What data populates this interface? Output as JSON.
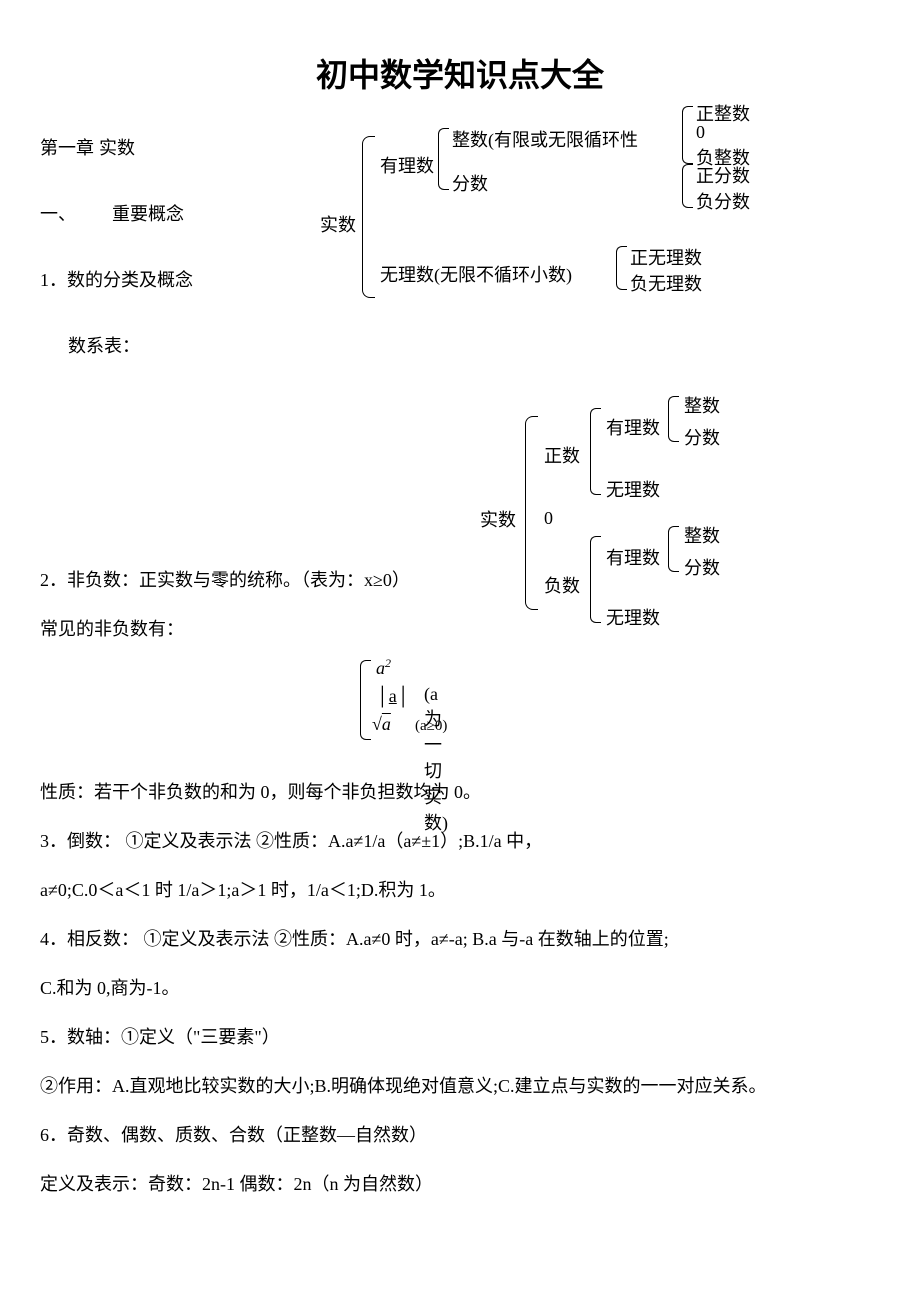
{
  "title": "初中数学知识点大全",
  "chapter": "第一章  实数",
  "section1_label": "一、",
  "section1_title": "重要概念",
  "item1": "1．数的分类及概念",
  "item1_sub": "数系表：",
  "diag1": {
    "root": "实数",
    "a": "有理数",
    "a1": "整数",
    "a1_note": "(有限或无限循环性",
    "a2": "分数",
    "a1_c1": "正整数",
    "a1_c2": "0",
    "a1_c3": "负整数",
    "a2_c1": "正分数",
    "a2_c2": "负分数",
    "b": "无理数(无限不循环小数)",
    "b_c1": "正无理数",
    "b_c2": "负无理数"
  },
  "diag2": {
    "root": "实数",
    "pos": "正数",
    "zero": "0",
    "neg": "负数",
    "rat": "有理数",
    "irr": "无理数",
    "int": "整数",
    "frac": "分数"
  },
  "item2": "2．非负数：正实数与零的统称。（表为：x≥0）",
  "item2_sub": "常见的非负数有：",
  "formula": {
    "f1_base": "a",
    "f1_exp": "2",
    "f2": "│a│",
    "f2_u": "a",
    "note1": "(a 为一切实数)",
    "f3_sqrt": "√",
    "f3_rad": "a",
    "note2": "(a≥0)"
  },
  "prop": "性质：若干个非负数的和为 0，则每个非负担数均为 0。",
  "item3": "3．倒数：  ①定义及表示法                           ②性质：A.a≠1/a（a≠±1）;B.1/a 中，",
  "item3b": "a≠0;C.0＜a＜1 时 1/a＞1;a＞1 时，1/a＜1;D.积为 1。",
  "item4": "4．相反数：  ①定义及表示法      ②性质：A.a≠0 时，a≠-a;           B.a 与-a 在数轴上的位置;",
  "item4b": "C.和为 0,商为-1。",
  "item5": "5．数轴：①定义（\"三要素\"）",
  "item5b": "②作用：A.直观地比较实数的大小;B.明确体现绝对值意义;C.建立点与实数的一一对应关系。",
  "item6": "6．奇数、偶数、质数、合数（正整数—自然数）",
  "item6b": "定义及表示：奇数：2n-1   偶数：2n（n 为自然数）"
}
